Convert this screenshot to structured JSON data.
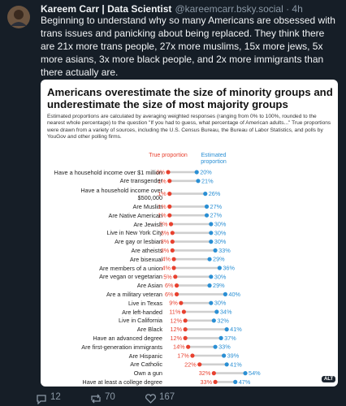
{
  "post": {
    "author": "Kareem Carr | Data Scientist",
    "meta": "@kareemcarr.bsky.social · 4h",
    "text": "Beginning to understand why so many Americans are obsessed with trans issues and panicking about being replaced. They think there are 21x more trans people, 27x more muslims, 15x more jews, 5x more asians, 3x more black people, and 2x more immigrants than there actually are.",
    "alt_badge": "ALT",
    "replies": 12,
    "reposts": 70,
    "likes": 167
  },
  "chart_data": {
    "type": "dumbbell",
    "title": "Americans overestimate the size of minority groups and underestimate the size of most majority groups",
    "subtitle": "Estimated proportions are calculated by averaging weighted responses (ranging from 0% to 100%, rounded to the nearest whole percentage) to the question \"If you had to guess, what percentage of American adults...\" True proportions were drawn from a variety of sources, including the U.S. Census Bureau, the Bureau of Labor Statistics, and polls by YouGov and other polling firms.",
    "categories": [
      "Have a household income over $1 million",
      "Are transgender",
      "Have a household income over\n$500,000",
      "Are Muslim",
      "Are Native American",
      "Are Jewish",
      "Live in New York City",
      "Are gay or lesbian",
      "Are atheists",
      "Are bisexual",
      "Are members of a union",
      "Are vegan or vegetarian",
      "Are Asian",
      "Are a military veteran",
      "Live in Texas",
      "Are left-handed",
      "Live in California",
      "Are Black",
      "Have an advanced degree",
      "Are first-generation immigrants",
      "Are Hispanic",
      "Are Catholic",
      "Own a gun",
      "Have at least a college degree"
    ],
    "series": [
      {
        "name": "True proportion",
        "color": "#e8412f",
        "values": [
          0,
          1,
          1,
          1,
          1,
          2,
          3,
          3,
          3,
          4,
          4,
          5,
          6,
          6,
          9,
          11,
          12,
          12,
          12,
          14,
          17,
          22,
          32,
          33
        ],
        "value_labels": [
          "0%",
          "1%",
          "1%",
          "1%",
          "1%",
          "2%",
          "3%",
          "3%",
          "3%",
          "4%",
          "4%",
          "5%",
          "6%",
          "6%",
          "9%",
          "11%",
          "12%",
          "12%",
          "12%",
          "14%",
          "17%",
          "22%",
          "32%",
          "33%"
        ]
      },
      {
        "name": "Estimated proportion",
        "color": "#2a8fd4",
        "values": [
          20,
          21,
          26,
          27,
          27,
          30,
          30,
          30,
          33,
          29,
          36,
          30,
          29,
          40,
          30,
          34,
          32,
          41,
          37,
          33,
          39,
          41,
          54,
          47
        ],
        "value_labels": [
          "20%",
          "21%",
          "26%",
          "27%",
          "27%",
          "30%",
          "30%",
          "30%",
          "33%",
          "29%",
          "36%",
          "30%",
          "29%",
          "40%",
          "30%",
          "34%",
          "32%",
          "41%",
          "37%",
          "33%",
          "39%",
          "41%",
          "54%",
          "47%"
        ]
      }
    ]
  }
}
